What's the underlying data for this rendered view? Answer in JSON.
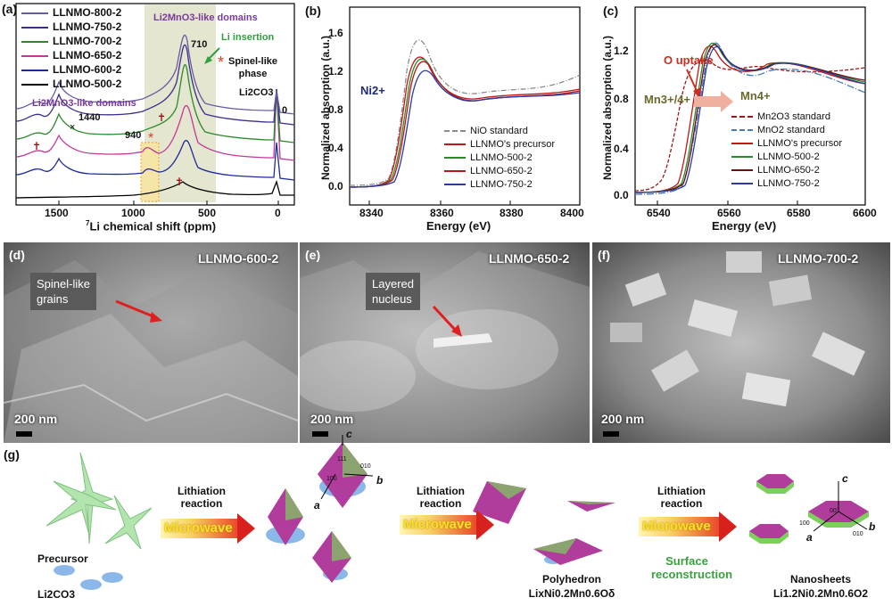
{
  "panel_a": {
    "label": "(a)",
    "legend": [
      "LLNMO-800-2",
      "LLNMO-750-2",
      "LLNMO-700-2",
      "LLNMO-650-2",
      "LLNMO-600-2",
      "LLNMO-500-2"
    ],
    "legend_colors": [
      "#6a5aa6",
      "#3a2e8c",
      "#2c8a2c",
      "#c2379a",
      "#1e2a9a",
      "#000000"
    ],
    "xlabel": "7Li chemical shift (ppm)",
    "xlabel_sup": "7",
    "xlabel_main": "Li chemical shift (ppm)",
    "xticks": [
      "1500",
      "1000",
      "500",
      "0"
    ],
    "ann_domains_top": "Li2MnO3-like domains",
    "ann_domains_left": "Li2MnO3-like domains",
    "ann_li_insertion": "Li insertion",
    "ann_spinel": "Spinel-like phase",
    "ann_spinel_1": "Spinel-like",
    "ann_spinel_2": "phase",
    "ann_li2co3": "Li2CO3",
    "peak_1440": "1440",
    "peak_940": "940",
    "peak_710": "710",
    "peak_0": "0",
    "colors": {
      "highlight": "#f5e6a8",
      "domain_band": "#e4e6cf",
      "arrow": "#2ea040"
    }
  },
  "panel_b": {
    "label": "(b)",
    "ylabel": "Normalized absorption (a.u.)",
    "xlabel": "Energy (eV)",
    "xticks": [
      "8340",
      "8360",
      "8380",
      "8400"
    ],
    "yticks": [
      "0.0",
      "0.4",
      "0.8",
      "1.2",
      "1.6"
    ],
    "ann": "Ni2+",
    "legend": [
      "NiO standard",
      "LLNMO's precursor",
      "LLNMO-500-2",
      "LLNMO-650-2",
      "LLNMO-750-2"
    ],
    "legend_colors": [
      "#8a8a8a",
      "#c01818",
      "#2c8a2c",
      "#b81818",
      "#2a3aa8"
    ]
  },
  "panel_c": {
    "label": "(c)",
    "ylabel": "Normalized absorption (a.u.)",
    "xlabel": "Energy (eV)",
    "xticks": [
      "6540",
      "6560",
      "6580",
      "6600"
    ],
    "yticks": [
      "0.0",
      "0.4",
      "0.8",
      "1.2"
    ],
    "ann_o_uptake": "O uptake",
    "ann_mn34": "Mn3+/4+",
    "ann_mn4": "Mn4+",
    "legend": [
      "Mn2O3 standard",
      "MnO2 standard",
      "LLNMO's precursor",
      "LLNMO-500-2",
      "LLNMO-650-2",
      "LLNMO-750-2"
    ],
    "legend_colors": [
      "#9a1818",
      "#4a7ab8",
      "#c01818",
      "#2c8a2c",
      "#6a1010",
      "#2a3aa8"
    ]
  },
  "panel_d": {
    "label": "(d)",
    "title": "LLNMO-600-2",
    "callout": "Spinel-like grains",
    "callout_1": "Spinel-like",
    "callout_2": "grains",
    "scale": "200 nm"
  },
  "panel_e": {
    "label": "(e)",
    "title": "LLNMO-650-2",
    "callout": "Layered nucleus",
    "callout_1": "Layered",
    "callout_2": "nucleus",
    "scale": "200 nm"
  },
  "panel_f": {
    "label": "(f)",
    "title": "LLNMO-700-2",
    "scale": "200 nm"
  },
  "panel_g": {
    "label": "(g)",
    "precursor": "Precursor",
    "li2co3": "Li2CO3",
    "step1_1": "Lithiation",
    "step1_2": "reaction",
    "step2_1": "Lithiation",
    "step2_2": "reaction",
    "step3_1": "Lithiation",
    "step3_2": "reaction",
    "microwave": "Microwave",
    "surface_1": "Surface",
    "surface_2": "reconstruction",
    "polyhedron": "Polyhedron",
    "polyhedron_formula": "LixNi0.2Mn0.6Oδ",
    "nanosheets": "Nanosheets",
    "nanosheets_formula": "Li1.2Ni0.2Mn0.6O2",
    "axis_a": "a",
    "axis_b": "b",
    "axis_c": "c",
    "facet_111": "111",
    "facet_100": "100",
    "facet_010": "010",
    "facet_001": "001",
    "colors": {
      "crystal_pink": "#b03c9c",
      "crystal_green": "#7ccf5c",
      "disk_blue": "#8ab8e8",
      "surface_text": "#3aa040"
    }
  }
}
